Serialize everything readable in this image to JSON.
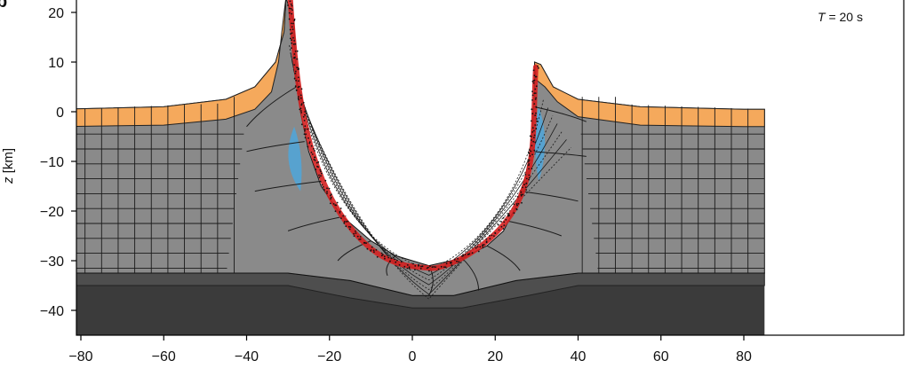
{
  "figure": {
    "panel_letter": "b",
    "annotation_prefix": "T",
    "annotation_value": " = 20 s",
    "y_axis_title_var": "z",
    "y_axis_title_unit": " [km]",
    "colors": {
      "sediment": "#f5a95c",
      "crust": "#8a8a8a",
      "lower_crust": "#4e4e4e",
      "mantle": "#3b3b3b",
      "fault_zone": "#d42020",
      "damage_zone": "#4aa8e0",
      "grid_line": "#1a1a1a",
      "frame": "#000000"
    }
  },
  "chart_data": {
    "type": "diagram",
    "description_units": "km",
    "xlim": [
      -85,
      80
    ],
    "ylim": [
      -45,
      23
    ],
    "x_ticks": [
      -80,
      -60,
      -40,
      -20,
      0,
      20,
      40,
      60,
      80
    ],
    "y_ticks": [
      20,
      10,
      0,
      -10,
      -20,
      -30,
      -40
    ],
    "x_tick_labels": [
      "−80",
      "−60",
      "−40",
      "−20",
      "0",
      "20",
      "40",
      "60",
      "80"
    ],
    "y_tick_labels": [
      "20",
      "10",
      "0",
      "−10",
      "−20",
      "−30",
      "−40"
    ],
    "surface_left_z": 0.5,
    "surface_right_z": 0.5,
    "sediment_thickness_km": 3.5,
    "crust_base_far_z": -32.5,
    "crust_base_center_z": -37,
    "lower_layer_base_far_z": -35,
    "left_wall_top": [
      -30.5,
      23
    ],
    "right_wall_top": [
      29.5,
      10
    ],
    "basin_bottom": [
      4,
      -31
    ]
  }
}
